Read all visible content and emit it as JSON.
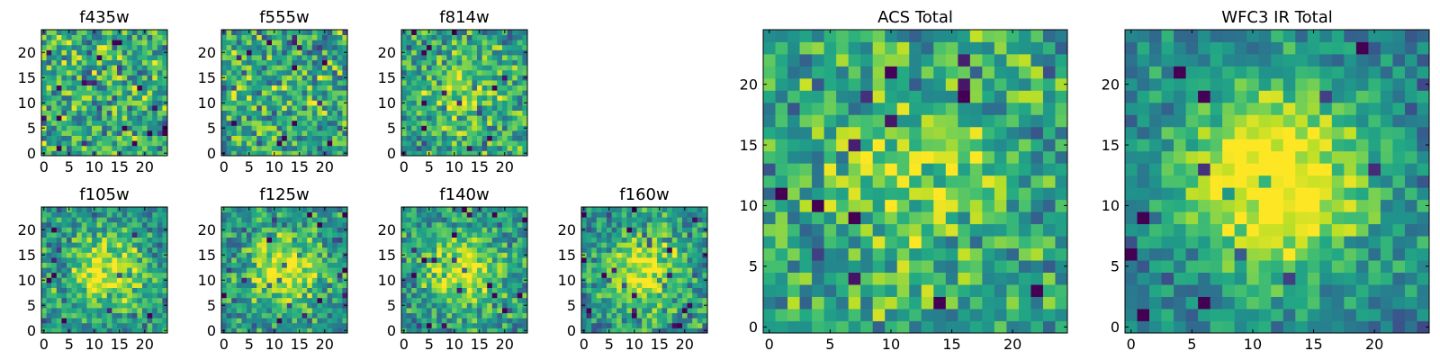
{
  "chart_data": [
    {
      "type": "heatmap",
      "title": "f435w",
      "colormap": "viridis",
      "grid_size": 25,
      "x_ticks": [
        "0",
        "5",
        "10",
        "15",
        "20"
      ],
      "y_ticks": [
        "0",
        "5",
        "10",
        "15",
        "20"
      ],
      "xlim": [
        0,
        25
      ],
      "ylim": [
        0,
        25
      ],
      "pattern": "noise",
      "seed": 11
    },
    {
      "type": "heatmap",
      "title": "f555w",
      "colormap": "viridis",
      "grid_size": 25,
      "x_ticks": [
        "0",
        "5",
        "10",
        "15",
        "20"
      ],
      "y_ticks": [
        "0",
        "5",
        "10",
        "15",
        "20"
      ],
      "xlim": [
        0,
        25
      ],
      "ylim": [
        0,
        25
      ],
      "pattern": "noise",
      "seed": 23
    },
    {
      "type": "heatmap",
      "title": "f814w",
      "colormap": "viridis",
      "grid_size": 25,
      "x_ticks": [
        "0",
        "5",
        "10",
        "15",
        "20"
      ],
      "y_ticks": [
        "0",
        "5",
        "10",
        "15",
        "20"
      ],
      "xlim": [
        0,
        25
      ],
      "ylim": [
        0,
        25
      ],
      "pattern": "weak_source",
      "seed": 37
    },
    {
      "type": "heatmap",
      "title": "f105w",
      "colormap": "viridis",
      "grid_size": 25,
      "x_ticks": [
        "0",
        "5",
        "10",
        "15",
        "20"
      ],
      "y_ticks": [
        "0",
        "5",
        "10",
        "15",
        "20"
      ],
      "xlim": [
        0,
        25
      ],
      "ylim": [
        0,
        25
      ],
      "pattern": "source",
      "seed": 41
    },
    {
      "type": "heatmap",
      "title": "f125w",
      "colormap": "viridis",
      "grid_size": 25,
      "x_ticks": [
        "0",
        "5",
        "10",
        "15",
        "20"
      ],
      "y_ticks": [
        "0",
        "5",
        "10",
        "15",
        "20"
      ],
      "xlim": [
        0,
        25
      ],
      "ylim": [
        0,
        25
      ],
      "pattern": "source",
      "seed": 53
    },
    {
      "type": "heatmap",
      "title": "f140w",
      "colormap": "viridis",
      "grid_size": 25,
      "x_ticks": [
        "0",
        "5",
        "10",
        "15",
        "20"
      ],
      "y_ticks": [
        "0",
        "5",
        "10",
        "15",
        "20"
      ],
      "xlim": [
        0,
        25
      ],
      "ylim": [
        0,
        25
      ],
      "pattern": "source",
      "seed": 67
    },
    {
      "type": "heatmap",
      "title": "f160w",
      "colormap": "viridis",
      "grid_size": 25,
      "x_ticks": [
        "0",
        "5",
        "10",
        "15",
        "20"
      ],
      "y_ticks": [
        "0",
        "5",
        "10",
        "15",
        "20"
      ],
      "xlim": [
        0,
        25
      ],
      "ylim": [
        0,
        25
      ],
      "pattern": "source",
      "seed": 79
    },
    {
      "type": "heatmap",
      "title": "ACS Total",
      "colormap": "viridis",
      "grid_size": 25,
      "x_ticks": [
        "0",
        "5",
        "10",
        "15",
        "20"
      ],
      "y_ticks": [
        "0",
        "5",
        "10",
        "15",
        "20"
      ],
      "xlim": [
        0,
        25
      ],
      "ylim": [
        0,
        25
      ],
      "pattern": "weak_source",
      "seed": 97
    },
    {
      "type": "heatmap",
      "title": "WFC3 IR Total",
      "colormap": "viridis",
      "grid_size": 25,
      "x_ticks": [
        "0",
        "5",
        "10",
        "15",
        "20"
      ],
      "y_ticks": [
        "0",
        "5",
        "10",
        "15",
        "20"
      ],
      "xlim": [
        0,
        25
      ],
      "ylim": [
        0,
        25
      ],
      "pattern": "strong_source",
      "seed": 113
    }
  ]
}
